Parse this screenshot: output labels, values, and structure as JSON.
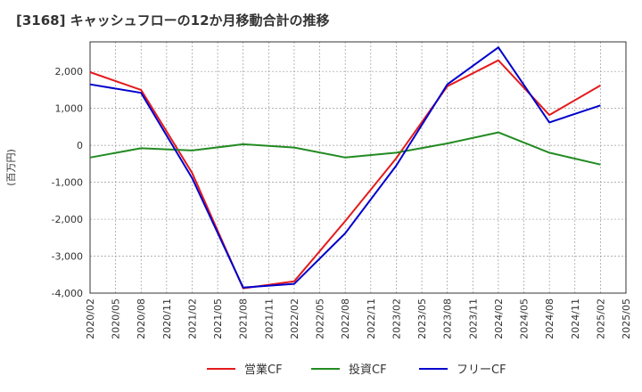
{
  "chart_data": {
    "type": "line",
    "title": "[3168]  キャッシュフローの12か月移動合計の推移",
    "xlabel": "",
    "ylabel": "(百万円)",
    "ylim": [
      -4000,
      2800
    ],
    "yticks": [
      -4000,
      -3000,
      -2000,
      -1000,
      0,
      1000,
      2000
    ],
    "ytick_labels": [
      "-4,000",
      "-3,000",
      "-2,000",
      "-1,000",
      "0",
      "1,000",
      "2,000"
    ],
    "x_ticks": [
      "2020/02",
      "2020/05",
      "2020/08",
      "2020/11",
      "2021/02",
      "2021/05",
      "2021/08",
      "2021/11",
      "2022/02",
      "2022/05",
      "2022/08",
      "2022/11",
      "2023/02",
      "2023/05",
      "2023/08",
      "2023/11",
      "2024/02",
      "2024/05",
      "2024/08",
      "2024/11",
      "2025/02",
      "2025/05"
    ],
    "x_points": [
      "2020/02",
      "2020/08",
      "2021/02",
      "2021/08",
      "2022/02",
      "2022/08",
      "2023/02",
      "2023/08",
      "2024/02",
      "2024/08",
      "2025/02"
    ],
    "grid": true,
    "legend_position": "bottom-center",
    "series": [
      {
        "name": "営業CF",
        "color": "#e41a1c",
        "values": [
          1980,
          1500,
          -750,
          -3870,
          -3680,
          -2050,
          -350,
          1600,
          2300,
          820,
          1620
        ]
      },
      {
        "name": "投資CF",
        "color": "#228b22",
        "values": [
          -330,
          -80,
          -140,
          30,
          -60,
          -330,
          -200,
          50,
          350,
          -200,
          -520
        ]
      },
      {
        "name": "フリーCF",
        "color": "#0000cc",
        "values": [
          1650,
          1420,
          -890,
          -3850,
          -3750,
          -2380,
          -550,
          1650,
          2650,
          620,
          1080
        ]
      }
    ]
  }
}
